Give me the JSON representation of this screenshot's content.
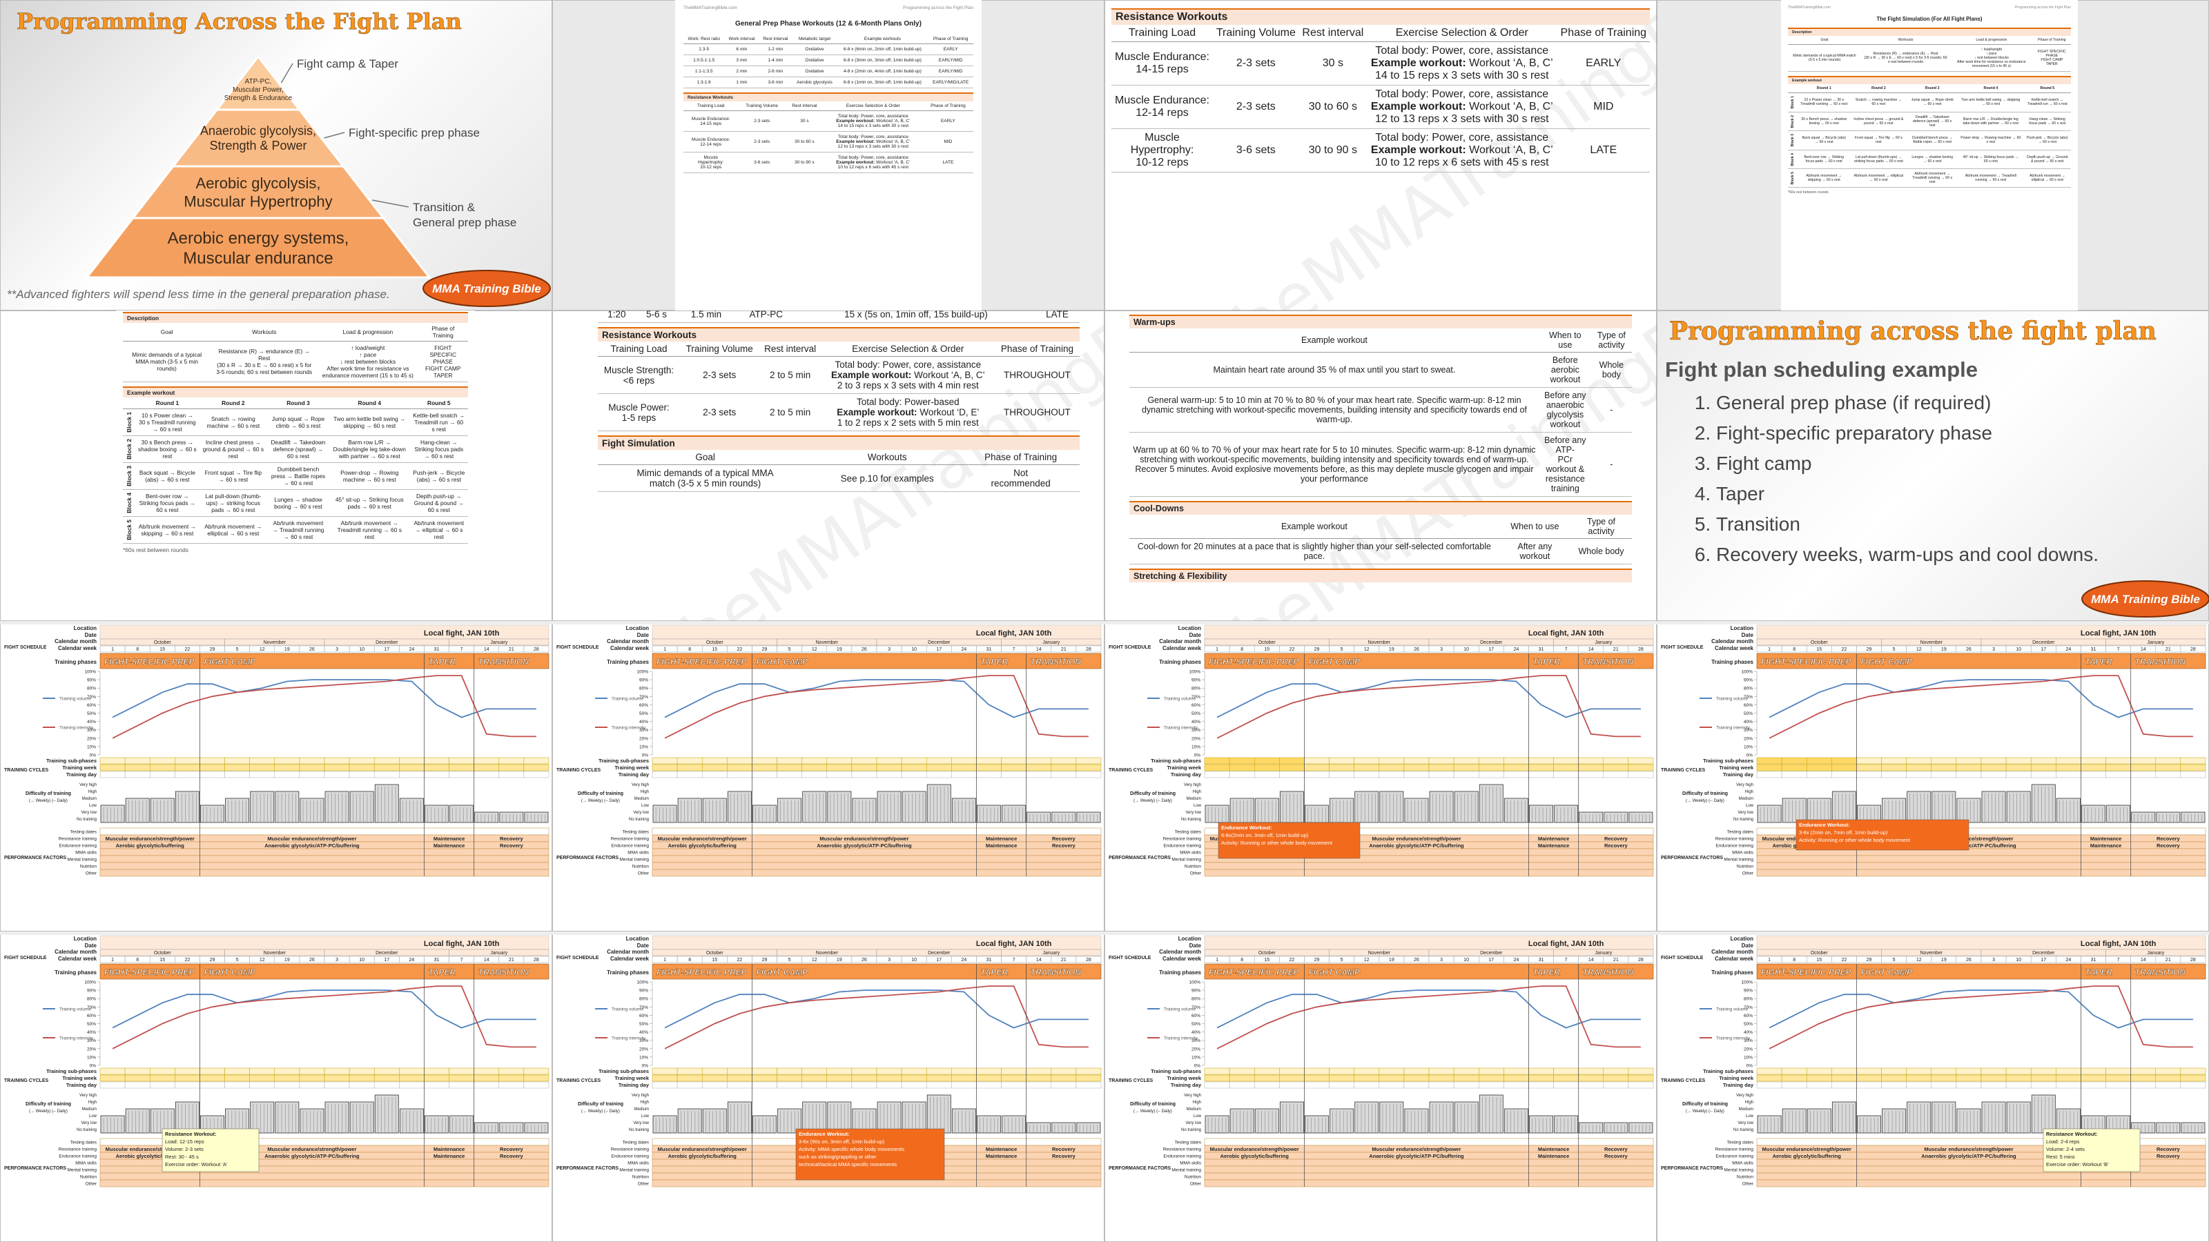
{
  "watermark": "TheMMATrainingBible",
  "logo": "MMA Training Bible",
  "pyramid_slide": {
    "title": "Programming Across the Fight Plan",
    "levels": [
      [
        "ATP-PC,",
        "Muscular Power,",
        "Strength & Endurance"
      ],
      [
        "Anaerobic glycolysis,",
        "Strength & Power"
      ],
      [
        "Aerobic glycolysis,",
        "Muscular Hypertrophy"
      ],
      [
        "Aerobic energy systems,",
        "Muscular endurance"
      ]
    ],
    "phase_labels": [
      [
        "Fight camp & Taper"
      ],
      [
        "Fight-specific prep phase"
      ],
      [
        "Transition &",
        "General prep phase"
      ]
    ],
    "footnote": "**Advanced fighters will spend less time in the general preparation phase."
  },
  "general_prep": {
    "header_left": "TheMMATrainingBible.com",
    "header_right": "Programming across the Fight Plan",
    "title": "General Prep Phase Workouts (12 & 6-Month Plans Only)",
    "endurance": {
      "headers": [
        "Work: Rest ratio",
        "Work interval",
        "Rest interval",
        "Metabolic target",
        "Example workouts",
        "Phase of Training"
      ],
      "rows": [
        [
          "1:3-5",
          "6 min",
          "1-2 min",
          "Oxidative",
          "6-8 x (6min on, 2min off, 1min build-up)",
          "EARLY"
        ],
        [
          "1:0.5-1:1.5",
          "3 min",
          "1-4 min",
          "Oxidative",
          "6-8 x (3min on, 3min off, 1min build-up)",
          "EARLY/MID"
        ],
        [
          "1:1-1:3.5",
          "2 min",
          "2-6 min",
          "Oxidative",
          "4-8 x (2min on, 4min off, 1min build-up)",
          "EARLY/MID"
        ],
        [
          "1:3-1:6",
          "1 min",
          "3-6 min",
          "Aerobic glycolysis",
          "6-8 x (1min on, 3min off, 1min build-up)",
          "EARLY/MID/LATE"
        ]
      ]
    },
    "resistance": {
      "title": "Resistance Workouts",
      "headers": [
        "Training Load",
        "Training Volume",
        "Rest interval",
        "Exercise Selection & Order",
        "Phase of Training"
      ],
      "rows": [
        [
          [
            "Muscle Endurance:",
            "14-15 reps"
          ],
          "2-3 sets",
          "30 s",
          [
            "Total body: Power, core, assistance",
            {
              "label": "Example workout:",
              "text": "Workout ‘A, B, C’"
            },
            "14 to 15 reps x 3 sets with 30 s rest"
          ],
          "EARLY"
        ],
        [
          [
            "Muscle Endurance:",
            "12-14 reps"
          ],
          "2-3 sets",
          "30 to 60 s",
          [
            "Total body: Power, core, assistance",
            {
              "label": "Example workout:",
              "text": "Workout ‘A, B, C’"
            },
            "12 to 13 reps x 3 sets with 30 s rest"
          ],
          "MID"
        ],
        [
          [
            "Muscle",
            "Hypertrophy:",
            "10-12 reps"
          ],
          "3-6 sets",
          "30 to 90 s",
          [
            "Total body: Power, core, assistance",
            {
              "label": "Example workout:",
              "text": "Workout ‘A, B, C’"
            },
            "10 to 12 reps x 6 sets with 45 s rest"
          ],
          "LATE"
        ]
      ]
    }
  },
  "fight_simulation": {
    "header_left": "TheMMATrainingBible.com",
    "header_right": "Programming across the Fight Plan",
    "title": "The Fight Simulation (For All Fight Plans)",
    "description": {
      "title": "Description",
      "headers": [
        "Goal",
        "Workouts",
        "Load & progression",
        "Phase of Training"
      ],
      "rows": [
        [
          [
            "Mimic demands of a typical MMA match (3-5 x 5 min rounds)"
          ],
          [
            "Resistance (R) → endurance (E) → Rest",
            "(30 s R → 30 s E → 60 s rest) x 5 for 3-5 rounds; 60 s rest between rounds"
          ],
          [
            "↑ load/weight",
            "↑ pace",
            "↓ rest between blocks",
            "After work time for resistance vs endurance movement (15 s to 45 s)"
          ],
          [
            "FIGHT SPECIFIC PHASE",
            "FIGHT CAMP",
            "TAPER"
          ]
        ]
      ]
    },
    "example": {
      "title": "Example workout",
      "rounds": [
        "Round 1",
        "Round 2",
        "Round 3",
        "Round 4",
        "Round 5"
      ],
      "blocks": [
        "Block 1",
        "Block 2",
        "Block 3",
        "Block 4",
        "Block 5"
      ],
      "cells": [
        [
          "10 s Power clean → 30 s Treadmill running → 60 s rest",
          "Snatch → rowing machine → 60 s rest",
          "Jump squat → Rope climb → 60 s rest",
          "Two arm kettle bell swing → skipping → 60 s rest",
          "Kettle-bell snatch → Treadmill run → 60 s rest"
        ],
        [
          "30 s Bench press → shadow boxing → 60 s rest",
          "Incline chest press → ground & pound → 60 s rest",
          "Deadlift → Takedown defence (sprawl) → 60 s rest",
          "Barm row L/R → Double/single leg take-down with partner → 60 s rest",
          "Hang-clean → Striking focus pads → 60 s rest"
        ],
        [
          "Back squat → Bicycle (abs) → 60 s rest",
          "Front squat → Tire flip → 60 s rest",
          "Dumbbell bench press → Battle ropes → 60 s rest",
          "Power-drop → Rowing machine → 60 s rest",
          "Push-jerk → Bicycle (abs) → 60 s rest"
        ],
        [
          "Bent-over row → Striking focus pads → 60 s rest",
          "Lat pull-down (thumb-ups) → striking focus pads → 60 s rest",
          "Lunges → shadow boxing → 60 s rest",
          "45° sit-up → Striking focus pads → 60 s rest",
          "Depth push-up → Ground & pound → 60 s rest"
        ],
        [
          "Ab/trunk movement → skipping → 60 s rest",
          "Ab/trunk movement → elliptical → 60 s rest",
          "Ab/trunk movement → Treadmill running → 60 s rest",
          "Ab/trunk movement → Treadmill running → 60 s rest",
          "Ab/trunk movement → elliptical → 60 s rest"
        ]
      ]
    },
    "footnote": "*60s rest between rounds"
  },
  "fight_specific": {
    "cut_row": [
      "1:20",
      "5-6 s",
      "1.5 min",
      "ATP-PC",
      "15 x (5s on, 1min off, 15s build-up)",
      "LATE"
    ],
    "resistance": {
      "title": "Resistance Workouts",
      "headers": [
        "Training Load",
        "Training Volume",
        "Rest interval",
        "Exercise Selection & Order",
        "Phase of Training"
      ],
      "rows": [
        [
          [
            "Muscle Strength:",
            "<6 reps"
          ],
          "2-3 sets",
          "2 to 5 min",
          [
            "Total body: Power, core, assistance",
            {
              "label": "Example workout:",
              "text": "Workout ‘A, B, C’"
            },
            "2 to 3 reps x 3 sets with 4 min rest"
          ],
          "THROUGHOUT"
        ],
        [
          [
            "Muscle Power:",
            "1-5 reps"
          ],
          "2-3 sets",
          "2 to 5 min",
          [
            "Total body: Power-based",
            {
              "label": "Example workout:",
              "text": "Workout ‘D, E’"
            },
            "1 to 2 reps x 2 sets with 5 min rest"
          ],
          "THROUGHOUT"
        ]
      ]
    },
    "fight_simulation": {
      "title": "Fight Simulation",
      "headers": [
        "Goal",
        "Workouts",
        "Phase of Training"
      ],
      "rows": [
        [
          [
            "Mimic demands of a typical MMA",
            "match (3-5 x 5 min rounds)"
          ],
          "See p.10 for examples",
          [
            "Not",
            "recommended"
          ]
        ]
      ]
    }
  },
  "warmups": {
    "warm_ups": {
      "title": "Warm-ups",
      "headers": [
        "Example workout",
        "When to use",
        "Type of activity"
      ],
      "rows": [
        [
          "Maintain heart rate around 35 % of max until you start to sweat.",
          [
            "Before aerobic",
            "workout"
          ],
          "Whole body"
        ],
        [
          "General warm-up: 5 to 10 min at 70 % to 80 % of your max heart rate. Specific warm-up: 8-12 min dynamic stretching with workout-specific movements, building intensity and specificity towards end of warm-up.",
          [
            "Before any",
            "anaerobic",
            "glycolysis",
            "workout"
          ],
          "-"
        ],
        [
          "Warm up at 60 % to 70 % of your max heart rate for 5 to 10 minutes. Specific warm-up: 8-12 min dynamic stretching with workout-specific movements, building intensity and specificity towards end of warm-up. Recover 5 minutes. Avoid explosive movements before, as this may deplete muscle glycogen and impair your performance",
          [
            "Before any ATP-",
            "PCr workout &",
            "resistance",
            "training"
          ],
          "-"
        ]
      ]
    },
    "cool_downs": {
      "title": "Cool-Downs",
      "headers": [
        "Example workout",
        "When to use",
        "Type of activity"
      ],
      "rows": [
        [
          "Cool-down for 20 minutes at a pace that is slightly higher than your self-selected comfortable pace.",
          "After any workout",
          "Whole body"
        ]
      ]
    },
    "stretching": "Stretching & Flexibility"
  },
  "schedule_slide": {
    "title": "Programming across the fight plan",
    "subtitle": "Fight plan scheduling example",
    "items": [
      "General prep phase (if required)",
      "Fight-specific preparatory phase",
      "Fight camp",
      "Taper",
      "Transition",
      "Recovery weeks, warm-ups and cool downs."
    ]
  },
  "schedule": {
    "left_labels": [
      "FIGHT SCHEDULE",
      "TRAINING CYCLES",
      "PERFORMANCE FACTORS"
    ],
    "header_rows": [
      "Location",
      "Date",
      "Calendar month",
      "Calendar week",
      "Training phases"
    ],
    "fight": "Local fight, JAN 10th",
    "months": [
      "October",
      "November",
      "December",
      "January"
    ],
    "weeks": [
      1,
      8,
      15,
      22,
      29,
      5,
      12,
      19,
      26,
      3,
      10,
      17,
      24,
      31,
      7,
      14,
      21,
      28
    ],
    "phases": [
      "FIGHT-SPECIFIC PREP",
      "FIGHT CAMP",
      "TAPER",
      "TRANSITION"
    ],
    "chart": {
      "ylim": [
        0,
        100
      ],
      "yticks": [
        {
          "value": 0,
          "label": "0%"
        },
        {
          "value": 10,
          "label": "10%"
        },
        {
          "value": 20,
          "label": "20%"
        },
        {
          "value": 30,
          "label": "30%"
        },
        {
          "value": 40,
          "label": "40%"
        },
        {
          "value": 50,
          "label": "50%"
        },
        {
          "value": 60,
          "label": "60%"
        },
        {
          "value": 70,
          "label": "70%"
        },
        {
          "value": 80,
          "label": "80%"
        },
        {
          "value": 90,
          "label": "90%"
        },
        {
          "value": 100,
          "label": "100%"
        }
      ],
      "series": [
        {
          "name": "Training volume",
          "color": "#4f81bd",
          "values": [
            45,
            60,
            75,
            85,
            85,
            75,
            80,
            88,
            90,
            90,
            90,
            90,
            88,
            60,
            45,
            55,
            55,
            55
          ]
        },
        {
          "name": "Training intensity",
          "color": "#c0504d",
          "values": [
            20,
            35,
            50,
            62,
            70,
            75,
            78,
            80,
            82,
            84,
            86,
            88,
            92,
            95,
            95,
            25,
            22,
            22
          ]
        }
      ]
    },
    "cycle_rows": [
      "Training sub-phases",
      "Training week",
      "Training day"
    ],
    "difficulty_label": "Difficulty of training",
    "difficulty_note": "(→ Weekly) (-- Daily)",
    "difficulty_levels": [
      "Very high",
      "High",
      "Medium",
      "Low",
      "Very low",
      "No training"
    ],
    "difficulty": [
      2,
      3,
      3,
      4,
      2,
      3,
      4,
      4,
      3,
      4,
      4,
      5,
      3,
      2,
      2,
      1,
      1,
      1
    ],
    "factor_rows": [
      "Testing dates",
      "Resistance training",
      "Endurance training",
      "MMA skills",
      "Mental training",
      "Nutrition",
      "Other"
    ],
    "resistance_factors": [
      "Muscular endurance/strength/power",
      "Muscular endurance/strength/power",
      "Maintenance",
      "Recovery"
    ],
    "endurance_factors": [
      "Aerobic glycolytic/buffering",
      "Anaerobic glycolytic/ATP-PC/buffering",
      "Maintenance",
      "Recovery"
    ]
  },
  "schedules": [
    {
      "highlight": false
    },
    {
      "highlight": false
    },
    {
      "highlight": true,
      "popup": {
        "color": "#f26b1d",
        "text_color": "#ffffff",
        "lines": [
          "Endurance Workout:",
          "6-8x(2min on, 3min off, 1min build-up)",
          "Activity: Running or other whole body movement"
        ]
      }
    },
    {
      "highlight": true,
      "popup": {
        "color": "#f26b1d",
        "text_color": "#ffffff",
        "lines": [
          "Endurance Workout:",
          "3-8x (2min on, 7min off, 1min build-up)",
          "Activity: Running or other whole body movement"
        ]
      }
    },
    {
      "highlight": false,
      "popup": {
        "color": "#ffffcc",
        "text_color": "#222222",
        "lines": [
          "Resistance Workout:",
          "Load: 12-15 reps",
          "Volume: 2-3 sets",
          "Rest: 30 - 45 s",
          "Exercise order: Workout ‘A’"
        ]
      }
    },
    {
      "highlight": false,
      "popup": {
        "color": "#f26b1d",
        "text_color": "#ffffff",
        "lines": [
          "Endurance Workout:",
          "3-6x (90s on, 3min off, 1min build-up)",
          "Activity: MMA specific whole body movements",
          "such as striking/grappling or other",
          "technical/tactical MMA specific movements"
        ]
      }
    },
    {
      "highlight": false
    },
    {
      "highlight": false,
      "popup": {
        "color": "#ffffcc",
        "text_color": "#222222",
        "lines": [
          "Resistance Workout:",
          "Load: 2-4 reps",
          "Volume: 2-4 sets",
          "Rest: 5 mins",
          "Exercise order: Workout ‘B’"
        ]
      }
    }
  ]
}
